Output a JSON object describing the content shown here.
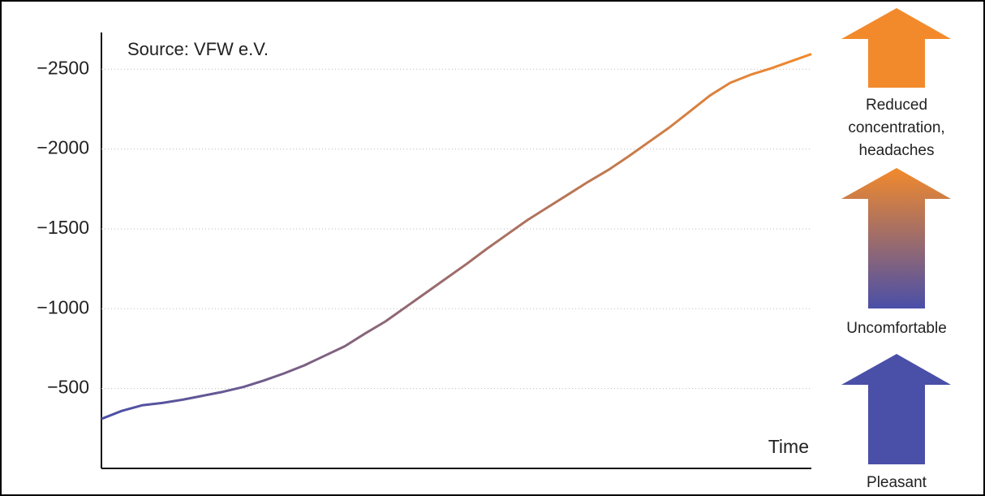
{
  "chart_data": {
    "type": "line",
    "annotation": "Source: VFW e.V.",
    "x_label": "Time",
    "values": [
      310,
      360,
      395,
      410,
      430,
      455,
      480,
      510,
      550,
      595,
      645,
      705,
      765,
      845,
      920,
      1010,
      1100,
      1190,
      1280,
      1375,
      1465,
      1555,
      1635,
      1715,
      1795,
      1870,
      1955,
      2045,
      2135,
      2235,
      2335,
      2415,
      2465,
      2505,
      2550,
      2595
    ],
    "color_start": "#4a4fa8",
    "color_end": "#f28a2c",
    "ylim": [
      0,
      2730
    ],
    "yticks": [
      {
        "value": 500,
        "label": "−500"
      },
      {
        "value": 1000,
        "label": "−1000"
      },
      {
        "value": 1500,
        "label": "−1500"
      },
      {
        "value": 2000,
        "label": "−2000"
      },
      {
        "value": 2500,
        "label": "−2500"
      }
    ],
    "grid": true,
    "levels": [
      {
        "lines": [
          "Reduced",
          "concentration,",
          "headaches"
        ],
        "color": "#f28a2c"
      },
      {
        "lines": [
          "Uncomfortable"
        ],
        "color": "#c9784e"
      },
      {
        "lines": [
          "Pleasant"
        ],
        "color": "#4a4fa8"
      }
    ]
  }
}
